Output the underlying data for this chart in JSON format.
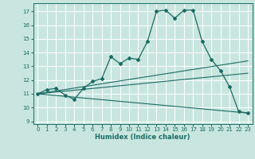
{
  "title": "",
  "xlabel": "Humidex (Indice chaleur)",
  "ylabel": "",
  "bg_color": "#c8e6df",
  "line_color": "#1a6b63",
  "grid_color": "#ffffff",
  "xlim": [
    -0.5,
    23.5
  ],
  "ylim": [
    8.8,
    17.6
  ],
  "yticks": [
    9,
    10,
    11,
    12,
    13,
    14,
    15,
    16,
    17
  ],
  "xticks": [
    0,
    1,
    2,
    3,
    4,
    5,
    6,
    7,
    8,
    9,
    10,
    11,
    12,
    13,
    14,
    15,
    16,
    17,
    18,
    19,
    20,
    21,
    22,
    23
  ],
  "series": [
    [
      0,
      11.0
    ],
    [
      1,
      11.3
    ],
    [
      2,
      11.4
    ],
    [
      3,
      10.9
    ],
    [
      4,
      10.6
    ],
    [
      5,
      11.4
    ],
    [
      6,
      11.9
    ],
    [
      7,
      12.1
    ],
    [
      8,
      13.7
    ],
    [
      9,
      13.2
    ],
    [
      10,
      13.6
    ],
    [
      11,
      13.5
    ],
    [
      12,
      14.8
    ],
    [
      13,
      17.0
    ],
    [
      14,
      17.1
    ],
    [
      15,
      16.5
    ],
    [
      16,
      17.1
    ],
    [
      17,
      17.1
    ],
    [
      18,
      14.8
    ],
    [
      19,
      13.5
    ],
    [
      20,
      12.7
    ],
    [
      21,
      11.5
    ],
    [
      22,
      9.7
    ],
    [
      23,
      9.6
    ]
  ],
  "line2": [
    [
      0,
      11.0
    ],
    [
      23,
      13.4
    ]
  ],
  "line3": [
    [
      0,
      11.0
    ],
    [
      23,
      12.5
    ]
  ],
  "line4": [
    [
      0,
      11.0
    ],
    [
      23,
      9.6
    ]
  ],
  "xlabel_fontsize": 6.0,
  "tick_fontsize": 5.0
}
